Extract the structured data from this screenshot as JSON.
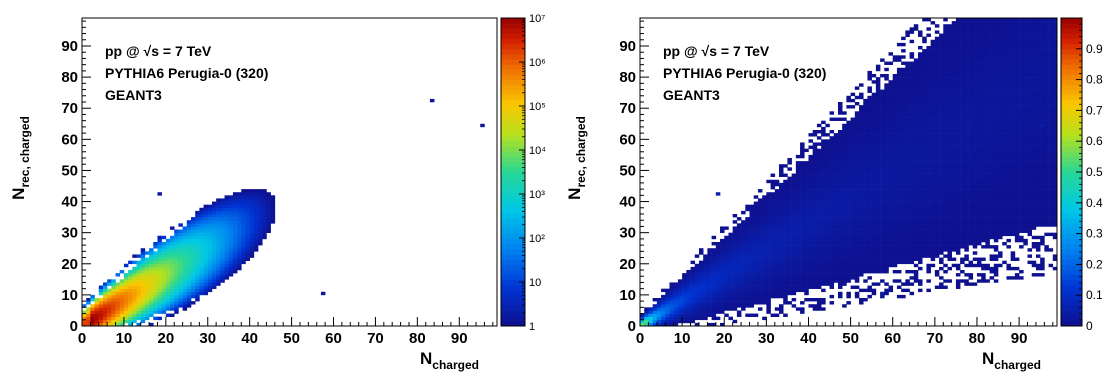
{
  "chart_data": [
    {
      "type": "heatmap",
      "xlabel": "N",
      "xlabel_sub": "charged",
      "ylabel": "N",
      "ylabel_sub": "rec, charged",
      "xlim": [
        0,
        99
      ],
      "ylim": [
        0,
        99
      ],
      "x_ticks": [
        0,
        10,
        20,
        30,
        40,
        50,
        60,
        70,
        80,
        90
      ],
      "y_ticks": [
        0,
        10,
        20,
        30,
        40,
        50,
        60,
        70,
        80,
        90
      ],
      "annotations": [
        "pp @ √s = 7 TeV",
        "PYTHIA6 Perugia-0 (320)",
        "GEANT3"
      ],
      "z_scale": "log",
      "z_range": [
        1,
        10000000
      ],
      "colorbar_labels": [
        "1",
        "10",
        "10²",
        "10³",
        "10⁴",
        "10⁵",
        "10⁶",
        "10⁷"
      ],
      "colorbar_values": [
        1,
        10,
        100,
        1000,
        10000,
        100000,
        1000000,
        10000000
      ],
      "distribution": {
        "mean_slope": 0.82,
        "peak_x": 2,
        "max_count": 10000000,
        "max_x_populated": 95,
        "max_y_populated": 72
      },
      "outliers": [
        [
          18,
          42
        ],
        [
          57,
          10
        ],
        [
          95,
          64
        ],
        [
          83,
          72
        ]
      ]
    },
    {
      "type": "heatmap",
      "xlabel": "N",
      "xlabel_sub": "charged",
      "ylabel": "N",
      "ylabel_sub": "rec, charged",
      "xlim": [
        0,
        99
      ],
      "ylim": [
        0,
        99
      ],
      "x_ticks": [
        0,
        10,
        20,
        30,
        40,
        50,
        60,
        70,
        80,
        90
      ],
      "y_ticks": [
        0,
        10,
        20,
        30,
        40,
        50,
        60,
        70,
        80,
        90
      ],
      "annotations": [
        "pp @ √s = 7 TeV",
        "PYTHIA6 Perugia-0 (320)",
        "GEANT3"
      ],
      "z_scale": "linear",
      "z_range": [
        0,
        1
      ],
      "colorbar_labels": [
        "0",
        "0.1",
        "0.2",
        "0.3",
        "0.4",
        "0.5",
        "0.6",
        "0.7",
        "0.8",
        "0.9"
      ],
      "colorbar_values": [
        0,
        0.1,
        0.2,
        0.3,
        0.4,
        0.5,
        0.6,
        0.7,
        0.8,
        0.9
      ],
      "distribution": {
        "mean_slope": 0.82,
        "peak_x": 1,
        "max_value": 1.0
      },
      "outliers": [
        [
          18,
          42
        ],
        [
          57,
          10
        ],
        [
          95,
          64
        ]
      ]
    }
  ]
}
